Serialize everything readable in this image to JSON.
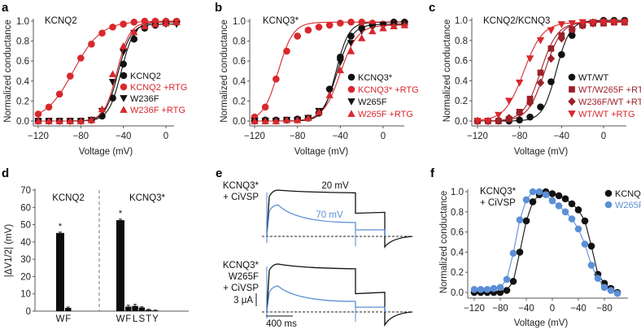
{
  "colors": {
    "black": "#111111",
    "red": "#d8282e",
    "darkred": "#9c2129",
    "blue": "#5c8fd6",
    "axis": "#555555"
  },
  "chart_data": [
    {
      "panel": "a",
      "type": "scatter",
      "title": "KCNQ2",
      "xlabel": "Voltage (mV)",
      "ylabel": "Normalized conductance",
      "xlim": [
        -125,
        12
      ],
      "ylim": [
        0,
        1.0
      ],
      "xticks": [
        -120,
        -80,
        -40,
        0
      ],
      "yticks": [
        0.0,
        0.2,
        0.4,
        0.6,
        0.8,
        1.0
      ],
      "legend": "center-right",
      "series": [
        {
          "name": "KCNQ2",
          "color": "black",
          "marker": "circle",
          "x": [
            -120,
            -110,
            -100,
            -90,
            -80,
            -70,
            -60,
            -50,
            -40,
            -30,
            -20,
            -10,
            0,
            10
          ],
          "y": [
            0.0,
            0.0,
            0.0,
            0.0,
            0.0,
            0.01,
            0.05,
            0.23,
            0.57,
            0.82,
            0.93,
            0.96,
            0.98,
            0.99
          ],
          "fit_v_half": -42,
          "fit_k": 6
        },
        {
          "name": "KCNQ2 +RTG",
          "color": "red",
          "marker": "circle",
          "x": [
            -120,
            -110,
            -100,
            -90,
            -80,
            -70,
            -60,
            -50,
            -40,
            -30,
            -20,
            -10,
            0,
            10
          ],
          "y": [
            0.07,
            0.14,
            0.27,
            0.45,
            0.63,
            0.77,
            0.88,
            0.94,
            0.97,
            0.99,
            1.0,
            1.0,
            1.0,
            1.0
          ],
          "fit_v_half": -87,
          "fit_k": 13
        },
        {
          "name": "W236F",
          "color": "black",
          "marker": "triangle-down",
          "x": [
            -120,
            -110,
            -100,
            -90,
            -80,
            -70,
            -60,
            -50,
            -40,
            -30,
            -20,
            -10,
            0,
            10
          ],
          "y": [
            0.0,
            0.0,
            0.0,
            0.0,
            0.0,
            0.01,
            0.1,
            0.39,
            0.69,
            0.88,
            0.93,
            0.96,
            0.97,
            0.97
          ],
          "fit_v_half": -45,
          "fit_k": 6
        },
        {
          "name": "W236F +RTG",
          "color": "red",
          "marker": "triangle-up",
          "x": [
            -120,
            -110,
            -100,
            -90,
            -80,
            -70,
            -60,
            -50,
            -40,
            -30,
            -20,
            -10,
            0,
            10
          ],
          "y": [
            0.0,
            0.0,
            0.0,
            0.0,
            0.0,
            0.01,
            0.12,
            0.47,
            0.75,
            0.89,
            0.95,
            0.97,
            0.98,
            0.99
          ],
          "fit_v_half": -46,
          "fit_k": 6
        }
      ]
    },
    {
      "panel": "b",
      "type": "scatter",
      "title": "KCNQ3*",
      "xlabel": "Voltage (mV)",
      "ylabel": "Normalized conductance",
      "xlim": [
        -125,
        22
      ],
      "ylim": [
        0,
        1.0
      ],
      "xticks": [
        -120,
        -80,
        -40,
        0
      ],
      "yticks": [
        0.0,
        0.2,
        0.4,
        0.6,
        0.8,
        1.0
      ],
      "legend": "center-right",
      "series": [
        {
          "name": "KCNQ3*",
          "color": "black",
          "marker": "circle",
          "x": [
            -120,
            -110,
            -100,
            -90,
            -80,
            -70,
            -60,
            -50,
            -40,
            -30,
            -20,
            -10,
            0,
            10,
            20
          ],
          "y": [
            0.0,
            0.01,
            0.01,
            0.01,
            0.02,
            0.03,
            0.08,
            0.32,
            0.64,
            0.85,
            0.93,
            0.96,
            0.97,
            0.99,
            0.99
          ],
          "fit_v_half": -44,
          "fit_k": 6
        },
        {
          "name": "KCNQ3* +RTG",
          "color": "red",
          "marker": "circle",
          "x": [
            -120,
            -110,
            -100,
            -90,
            -80,
            -70,
            -60,
            -50,
            -40,
            -30,
            -20,
            -10,
            0,
            10,
            20
          ],
          "y": [
            0.04,
            0.14,
            0.42,
            0.7,
            0.85,
            0.91,
            0.94,
            0.96,
            0.98,
            0.99,
            0.99,
            0.98,
            0.97,
            0.97,
            0.97
          ],
          "fit_v_half": -98,
          "fit_k": 7
        },
        {
          "name": "W265F",
          "color": "black",
          "marker": "triangle-down",
          "x": [
            -120,
            -110,
            -100,
            -90,
            -80,
            -70,
            -60,
            -50,
            -40,
            -30,
            -20,
            -10,
            0,
            10,
            20
          ],
          "y": [
            0.0,
            0.0,
            0.0,
            0.01,
            0.01,
            0.03,
            0.1,
            0.3,
            0.59,
            0.78,
            0.9,
            0.94,
            0.96,
            0.97,
            0.97
          ],
          "fit_v_half": -43,
          "fit_k": 7
        },
        {
          "name": "W265F +RTG",
          "color": "red",
          "marker": "triangle-up",
          "x": [
            -120,
            -110,
            -100,
            -90,
            -80,
            -70,
            -60,
            -50,
            -40,
            -30,
            -20,
            -10,
            0,
            10,
            20
          ],
          "y": [
            0.0,
            0.0,
            0.0,
            0.01,
            0.01,
            0.03,
            0.09,
            0.26,
            0.51,
            0.7,
            0.83,
            0.9,
            0.93,
            0.95,
            0.96
          ],
          "fit_v_half": -40,
          "fit_k": 8
        }
      ]
    },
    {
      "panel": "c",
      "type": "scatter",
      "title": "KCNQ2/KCNQ3",
      "xlabel": "Voltage (mV)",
      "ylabel": "Normalized conductance",
      "xlim": [
        -125,
        22
      ],
      "ylim": [
        0,
        1.0
      ],
      "xticks": [
        -120,
        -80,
        -40,
        0
      ],
      "yticks": [
        0.0,
        0.2,
        0.4,
        0.6,
        0.8,
        1.0
      ],
      "legend": "center-right",
      "series": [
        {
          "name": "WT/WT",
          "color": "black",
          "marker": "circle",
          "x": [
            -120,
            -110,
            -100,
            -90,
            -80,
            -70,
            -60,
            -50,
            -40,
            -30,
            -20,
            -10,
            0,
            10,
            20
          ],
          "y": [
            0.0,
            0.0,
            0.0,
            0.0,
            0.01,
            0.04,
            0.14,
            0.39,
            0.66,
            0.85,
            0.95,
            0.98,
            1.0,
            1.0,
            1.0
          ],
          "fit_v_half": -45,
          "fit_k": 6.5
        },
        {
          "name": "WT/W265F +RTG",
          "color": "darkred",
          "marker": "square",
          "x": [
            -120,
            -110,
            -100,
            -90,
            -80,
            -70,
            -60,
            -50,
            -40,
            -30,
            -20,
            -10,
            0,
            10,
            20
          ],
          "y": [
            0.0,
            0.0,
            0.0,
            0.02,
            0.09,
            0.22,
            0.48,
            0.72,
            0.85,
            0.91,
            0.95,
            0.97,
            0.97,
            0.98,
            0.98
          ],
          "fit_v_half": -60,
          "fit_k": 8
        },
        {
          "name": "W236F/WT +RTG",
          "color": "darkred",
          "marker": "diamond",
          "x": [
            -120,
            -110,
            -100,
            -90,
            -80,
            -70,
            -60,
            -50,
            -40,
            -30,
            -20,
            -10,
            0,
            10,
            20
          ],
          "y": [
            0.0,
            0.0,
            0.01,
            0.03,
            0.08,
            0.18,
            0.38,
            0.62,
            0.82,
            0.91,
            0.95,
            0.97,
            0.99,
            0.99,
            0.99
          ],
          "fit_v_half": -56,
          "fit_k": 8
        },
        {
          "name": "WT/WT +RTG",
          "color": "red",
          "marker": "triangle-down",
          "x": [
            -120,
            -110,
            -100,
            -90,
            -80,
            -70,
            -60,
            -50,
            -40,
            -30,
            -20,
            -10,
            0,
            10,
            20
          ],
          "y": [
            0.0,
            0.0,
            0.06,
            0.2,
            0.38,
            0.62,
            0.8,
            0.9,
            0.96,
            0.97,
            0.98,
            0.98,
            0.98,
            0.98,
            0.98
          ],
          "fit_v_half": -76,
          "fit_k": 9
        }
      ]
    },
    {
      "panel": "d",
      "type": "bar",
      "title": "",
      "ylabel": "|ΔV1/2| (mV)",
      "ylim": [
        0,
        70
      ],
      "yticks": [
        0,
        10,
        20,
        30,
        40,
        50,
        60,
        70
      ],
      "groups": [
        {
          "name": "KCNQ2",
          "categories": [
            "W",
            "F"
          ],
          "values": [
            45.2,
            1.9
          ],
          "errors": [
            0.5,
            0.5
          ],
          "significant": [
            true,
            false
          ]
        },
        {
          "name": "KCNQ3*",
          "categories": [
            "W",
            "F",
            "L",
            "S",
            "T",
            "Y"
          ],
          "values": [
            52.6,
            2.6,
            3.0,
            2.1,
            0.8,
            0.4
          ],
          "errors": [
            0.6,
            0.8,
            0.9,
            0.4,
            0.3,
            0.2
          ],
          "significant": [
            true,
            false,
            false,
            false,
            false,
            false
          ]
        }
      ],
      "significance_marker": "*"
    },
    {
      "panel": "e",
      "type": "line",
      "title": "",
      "traces": [
        {
          "label": "KCNQ3* + CiVSP",
          "series": [
            {
              "name": "20 mV",
              "color": "black",
              "peak": 1.0,
              "plateau": 0.94,
              "tail_step": 0.5,
              "tail_end": 0.52
            },
            {
              "name": "70 mV",
              "color": "blue",
              "peak": 0.68,
              "plateau": 0.3,
              "tail_step": 0.14,
              "tail_end": 0.14
            }
          ]
        },
        {
          "label": "KCNQ3* W265F + CiVSP",
          "series": [
            {
              "name": "20 mV",
              "color": "black",
              "peak": 1.0,
              "plateau": 0.9,
              "tail_step": 0.38,
              "tail_end": 0.41
            },
            {
              "name": "70 mV",
              "color": "blue",
              "peak": 0.54,
              "plateau": 0.22,
              "tail_step": 0.1,
              "tail_end": 0.1
            }
          ]
        }
      ],
      "series_labels": [
        "20 mV",
        "70 mV"
      ],
      "scale_bars": {
        "current": "3 μA",
        "time": "400 ms"
      }
    },
    {
      "panel": "f",
      "type": "scatter",
      "title": "KCNQ3* + CiVSP",
      "xlabel": "Voltage (mV)",
      "ylabel": "Normalized conductance",
      "xlim": [
        -125,
        105
      ],
      "ylim": [
        0,
        1.0
      ],
      "xticks": [
        -120,
        -80,
        -40,
        0,
        40,
        80
      ],
      "yticks": [
        0.0,
        0.2,
        0.4,
        0.6,
        0.8,
        1.0
      ],
      "legend": "top-right",
      "series": [
        {
          "name": "KCNQ3*",
          "color": "black",
          "marker": "circle",
          "x": [
            -120,
            -110,
            -100,
            -90,
            -80,
            -70,
            -60,
            -50,
            -40,
            -30,
            -20,
            -10,
            0,
            10,
            20,
            30,
            40,
            50,
            60,
            70,
            80,
            90,
            100
          ],
          "y": [
            0.0,
            0.0,
            0.0,
            0.0,
            0.0,
            0.02,
            0.11,
            0.4,
            0.71,
            0.9,
            0.97,
            1.0,
            0.98,
            0.96,
            0.93,
            0.88,
            0.82,
            0.71,
            0.46,
            0.18,
            0.09,
            0.04,
            0.0
          ]
        },
        {
          "name": "W265F",
          "color": "blue",
          "marker": "circle",
          "x": [
            -120,
            -110,
            -100,
            -90,
            -80,
            -70,
            -60,
            -50,
            -40,
            -30,
            -20,
            -10,
            0,
            10,
            20,
            30,
            40,
            50,
            60,
            70,
            80,
            90,
            100
          ],
          "y": [
            0.03,
            0.03,
            0.03,
            0.04,
            0.05,
            0.13,
            0.39,
            0.72,
            0.92,
            1.0,
            1.0,
            0.97,
            0.91,
            0.86,
            0.8,
            0.73,
            0.63,
            0.48,
            0.27,
            0.14,
            0.05,
            0.02,
            -0.01
          ]
        }
      ]
    }
  ],
  "panel_letters": [
    "a",
    "b",
    "c",
    "d",
    "e",
    "f"
  ]
}
